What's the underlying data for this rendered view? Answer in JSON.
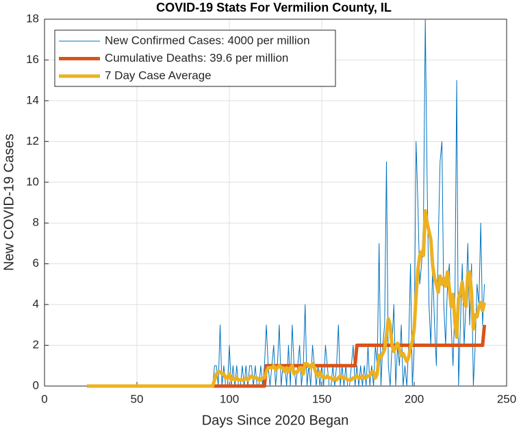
{
  "chart_data": {
    "type": "line",
    "title": "COVID-19 Stats For Vermilion County, IL",
    "xlabel": "Days Since 2020 Began",
    "ylabel": "New COVID-19 Cases",
    "xlim": [
      0,
      250
    ],
    "xticks": [
      0,
      50,
      100,
      150,
      200,
      250
    ],
    "ylim": [
      0,
      18
    ],
    "yticks": [
      0,
      2,
      4,
      6,
      8,
      10,
      12,
      14,
      16,
      18
    ],
    "grid": true,
    "legend": "northwest",
    "x": [
      23,
      24,
      25,
      26,
      27,
      28,
      29,
      30,
      31,
      32,
      33,
      34,
      35,
      36,
      37,
      38,
      39,
      40,
      41,
      42,
      43,
      44,
      45,
      46,
      47,
      48,
      49,
      50,
      51,
      52,
      53,
      54,
      55,
      56,
      57,
      58,
      59,
      60,
      61,
      62,
      63,
      64,
      65,
      66,
      67,
      68,
      69,
      70,
      71,
      72,
      73,
      74,
      75,
      76,
      77,
      78,
      79,
      80,
      81,
      82,
      83,
      84,
      85,
      86,
      87,
      88,
      89,
      90,
      91,
      92,
      93,
      94,
      95,
      96,
      97,
      98,
      99,
      100,
      101,
      102,
      103,
      104,
      105,
      106,
      107,
      108,
      109,
      110,
      111,
      112,
      113,
      114,
      115,
      116,
      117,
      118,
      119,
      120,
      121,
      122,
      123,
      124,
      125,
      126,
      127,
      128,
      129,
      130,
      131,
      132,
      133,
      134,
      135,
      136,
      137,
      138,
      139,
      140,
      141,
      142,
      143,
      144,
      145,
      146,
      147,
      148,
      149,
      150,
      151,
      152,
      153,
      154,
      155,
      156,
      157,
      158,
      159,
      160,
      161,
      162,
      163,
      164,
      165,
      166,
      167,
      168,
      169,
      170,
      171,
      172,
      173,
      174,
      175,
      176,
      177,
      178,
      179,
      180,
      181,
      182,
      183,
      184,
      185,
      186,
      187,
      188,
      189,
      190,
      191,
      192,
      193,
      194,
      195,
      196,
      197,
      198,
      199,
      200,
      201,
      202,
      203,
      204,
      205,
      206,
      207,
      208,
      209,
      210,
      211,
      212,
      213,
      214,
      215,
      216,
      217,
      218,
      219,
      220,
      221,
      222,
      223,
      224,
      225,
      226,
      227,
      228,
      229,
      230,
      231,
      232,
      233,
      234,
      235,
      236,
      237,
      238
    ],
    "series": [
      {
        "name": "New Confirmed Cases: 4000 per million",
        "color": "#0072bd",
        "width": 1,
        "values": [
          0,
          0,
          0,
          0,
          0,
          0,
          0,
          0,
          0,
          0,
          0,
          0,
          0,
          0,
          0,
          0,
          0,
          0,
          0,
          0,
          0,
          0,
          0,
          0,
          0,
          0,
          0,
          0,
          0,
          0,
          0,
          0,
          0,
          0,
          0,
          0,
          0,
          0,
          0,
          0,
          0,
          0,
          0,
          0,
          0,
          0,
          0,
          0,
          0,
          0,
          0,
          0,
          0,
          0,
          0,
          0,
          0,
          0,
          0,
          0,
          0,
          0,
          0,
          0,
          0,
          0,
          0,
          0,
          0,
          1,
          1,
          0,
          3,
          0,
          1,
          0,
          0,
          2,
          0,
          1,
          0,
          1,
          0,
          0,
          1,
          0,
          1,
          0,
          1,
          1,
          0,
          1,
          0,
          0,
          1,
          0,
          1,
          3,
          1,
          0,
          1,
          2,
          0,
          1,
          3,
          0,
          1,
          1,
          0,
          2,
          0,
          3,
          1,
          0,
          1,
          2,
          0,
          1,
          4,
          0,
          1,
          0,
          2,
          1,
          0,
          1,
          0,
          1,
          0,
          2,
          1,
          0,
          0,
          1,
          0,
          1,
          3,
          0,
          1,
          0,
          1,
          0,
          0,
          1,
          2,
          0,
          1,
          0,
          1,
          0,
          1,
          0,
          2,
          0,
          1,
          0,
          2,
          1,
          7,
          0,
          2,
          3,
          11,
          1,
          0,
          2,
          4,
          0,
          2,
          1,
          3,
          0,
          1,
          0,
          2,
          6,
          0,
          2,
          12,
          9,
          5,
          6,
          8,
          18,
          10,
          4,
          2,
          6,
          3,
          1,
          7,
          11,
          12,
          4,
          2,
          5,
          6,
          3,
          1,
          4,
          15,
          0,
          3,
          6,
          2,
          4,
          7,
          3,
          6,
          0,
          2,
          5,
          4,
          8,
          3,
          5
        ]
      },
      {
        "name": "Cumulative Deaths: 39.6 per million",
        "color": "#d95319",
        "width": 5,
        "values": [
          0,
          0,
          0,
          0,
          0,
          0,
          0,
          0,
          0,
          0,
          0,
          0,
          0,
          0,
          0,
          0,
          0,
          0,
          0,
          0,
          0,
          0,
          0,
          0,
          0,
          0,
          0,
          0,
          0,
          0,
          0,
          0,
          0,
          0,
          0,
          0,
          0,
          0,
          0,
          0,
          0,
          0,
          0,
          0,
          0,
          0,
          0,
          0,
          0,
          0,
          0,
          0,
          0,
          0,
          0,
          0,
          0,
          0,
          0,
          0,
          0,
          0,
          0,
          0,
          0,
          0,
          0,
          0,
          0,
          0,
          0,
          0,
          0,
          0,
          0,
          0,
          0,
          0,
          0,
          0,
          0,
          0,
          0,
          0,
          0,
          0,
          0,
          0,
          0,
          0,
          0,
          0,
          0,
          0,
          0,
          0,
          0,
          1,
          1,
          1,
          1,
          1,
          1,
          1,
          1,
          1,
          1,
          1,
          1,
          1,
          1,
          1,
          1,
          1,
          1,
          1,
          1,
          1,
          1,
          1,
          1,
          1,
          1,
          1,
          1,
          1,
          1,
          1,
          1,
          1,
          1,
          1,
          1,
          1,
          1,
          1,
          1,
          1,
          1,
          1,
          1,
          1,
          1,
          1,
          1,
          1,
          2,
          2,
          2,
          2,
          2,
          2,
          2,
          2,
          2,
          2,
          2,
          2,
          2,
          2,
          2,
          2,
          2,
          2,
          2,
          2,
          2,
          2,
          2,
          2,
          2,
          2,
          2,
          2,
          2,
          2,
          2,
          2,
          2,
          2,
          2,
          2,
          2,
          2,
          2,
          2,
          2,
          2,
          2,
          2,
          2,
          2,
          2,
          2,
          2,
          2,
          2,
          2,
          2,
          2,
          2,
          2,
          2,
          2,
          2,
          2,
          2,
          2,
          2,
          2,
          2,
          2,
          2,
          2,
          2,
          3
        ]
      },
      {
        "name": "7 Day Case Average",
        "color": "#edb120",
        "width": 5,
        "values": [
          0,
          0,
          0,
          0,
          0,
          0,
          0,
          0,
          0,
          0,
          0,
          0,
          0,
          0,
          0,
          0,
          0,
          0,
          0,
          0,
          0,
          0,
          0,
          0,
          0,
          0,
          0,
          0,
          0,
          0,
          0,
          0,
          0,
          0,
          0,
          0,
          0,
          0,
          0,
          0,
          0,
          0,
          0,
          0,
          0,
          0,
          0,
          0,
          0,
          0,
          0,
          0,
          0,
          0,
          0,
          0,
          0,
          0,
          0,
          0,
          0,
          0,
          0,
          0,
          0,
          0,
          0,
          0,
          0,
          0.3,
          0.6,
          0.7,
          0.7,
          0.6,
          0.6,
          0.4,
          0.4,
          0.6,
          0.3,
          0.4,
          0.3,
          0.4,
          0.3,
          0.3,
          0.3,
          0.3,
          0.4,
          0.3,
          0.4,
          0.5,
          0.4,
          0.4,
          0.4,
          0.3,
          0.3,
          0.4,
          0.4,
          0.7,
          0.9,
          0.9,
          0.9,
          1.0,
          0.8,
          0.9,
          1.0,
          0.9,
          0.9,
          0.7,
          0.9,
          0.7,
          0.9,
          1.0,
          0.6,
          0.7,
          0.7,
          0.9,
          0.9,
          0.6,
          1.1,
          1.1,
          1.0,
          0.9,
          1.1,
          0.9,
          0.6,
          0.5,
          0.7,
          0.5,
          0.4,
          0.4,
          0.5,
          0.4,
          0.4,
          0.3,
          0.4,
          0.3,
          0.4,
          0.5,
          0.4,
          0.4,
          0.4,
          0.3,
          0.3,
          0.3,
          0.4,
          0.4,
          0.5,
          0.4,
          0.4,
          0.5,
          0.4,
          0.4,
          0.5,
          0.5,
          0.7,
          0.7,
          0.4,
          0.6,
          1.5,
          1.4,
          1.6,
          1.8,
          2.5,
          3.3,
          3.0,
          2.0,
          1.7,
          1.9,
          2.1,
          1.8,
          1.5,
          1.6,
          1.4,
          1.2,
          1.4,
          1.9,
          2.2,
          2.8,
          4.4,
          5.7,
          6.4,
          6.6,
          6.4,
          8.6,
          8.0,
          7.6,
          7.2,
          5.9,
          5.3,
          5.0,
          4.6,
          5.4,
          5.0,
          5.3,
          4.9,
          5.6,
          4.8,
          3.9,
          4.5,
          3.2,
          2.4,
          4.3,
          4.6,
          5.1,
          4.2,
          3.9,
          5.5,
          5.6,
          4.6,
          2.8,
          3.5,
          3.4,
          3.9,
          4.1,
          3.7,
          4.1
        ]
      }
    ]
  }
}
